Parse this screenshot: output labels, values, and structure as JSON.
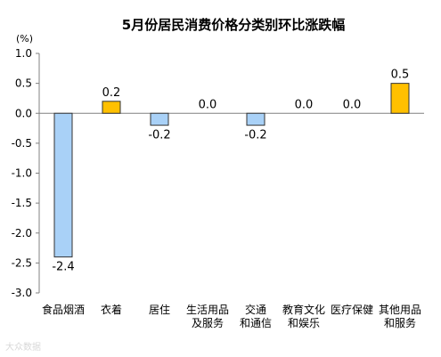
{
  "chart_data": {
    "type": "bar",
    "title": "5月份居民消费价格分类别环比涨跌幅",
    "unit_label": "(%)",
    "categories": [
      [
        "食品烟酒"
      ],
      [
        "衣着"
      ],
      [
        "居住"
      ],
      [
        "生活用品",
        "及服务"
      ],
      [
        "交通",
        "和通信"
      ],
      [
        "教育文化",
        "和娱乐"
      ],
      [
        "医疗保健"
      ],
      [
        "其他用品",
        "和服务"
      ]
    ],
    "values": [
      -2.4,
      0.2,
      -0.2,
      0.0,
      -0.2,
      0.0,
      0.0,
      0.5
    ],
    "value_labels": [
      "-2.4",
      "0.2",
      "-0.2",
      "0.0",
      "-0.2",
      "0.0",
      "0.0",
      "0.5"
    ],
    "ylim": [
      -3.0,
      1.0
    ],
    "yticks": [
      1.0,
      0.5,
      0.0,
      -0.5,
      -1.0,
      -1.5,
      -2.0,
      -2.5,
      -3.0
    ],
    "ytick_labels": [
      "1.0",
      "0.5",
      "0.0",
      "-0.5",
      "-1.0",
      "-1.5",
      "-2.0",
      "-2.5",
      "-3.0"
    ],
    "grid": false,
    "legend": "none",
    "colors": {
      "negative_fill": "#a9d1f7",
      "positive_fill": "#ffc000",
      "bar_stroke": "#333333",
      "axis": "#808080",
      "text": "#000000"
    }
  },
  "watermark": "大众数据"
}
